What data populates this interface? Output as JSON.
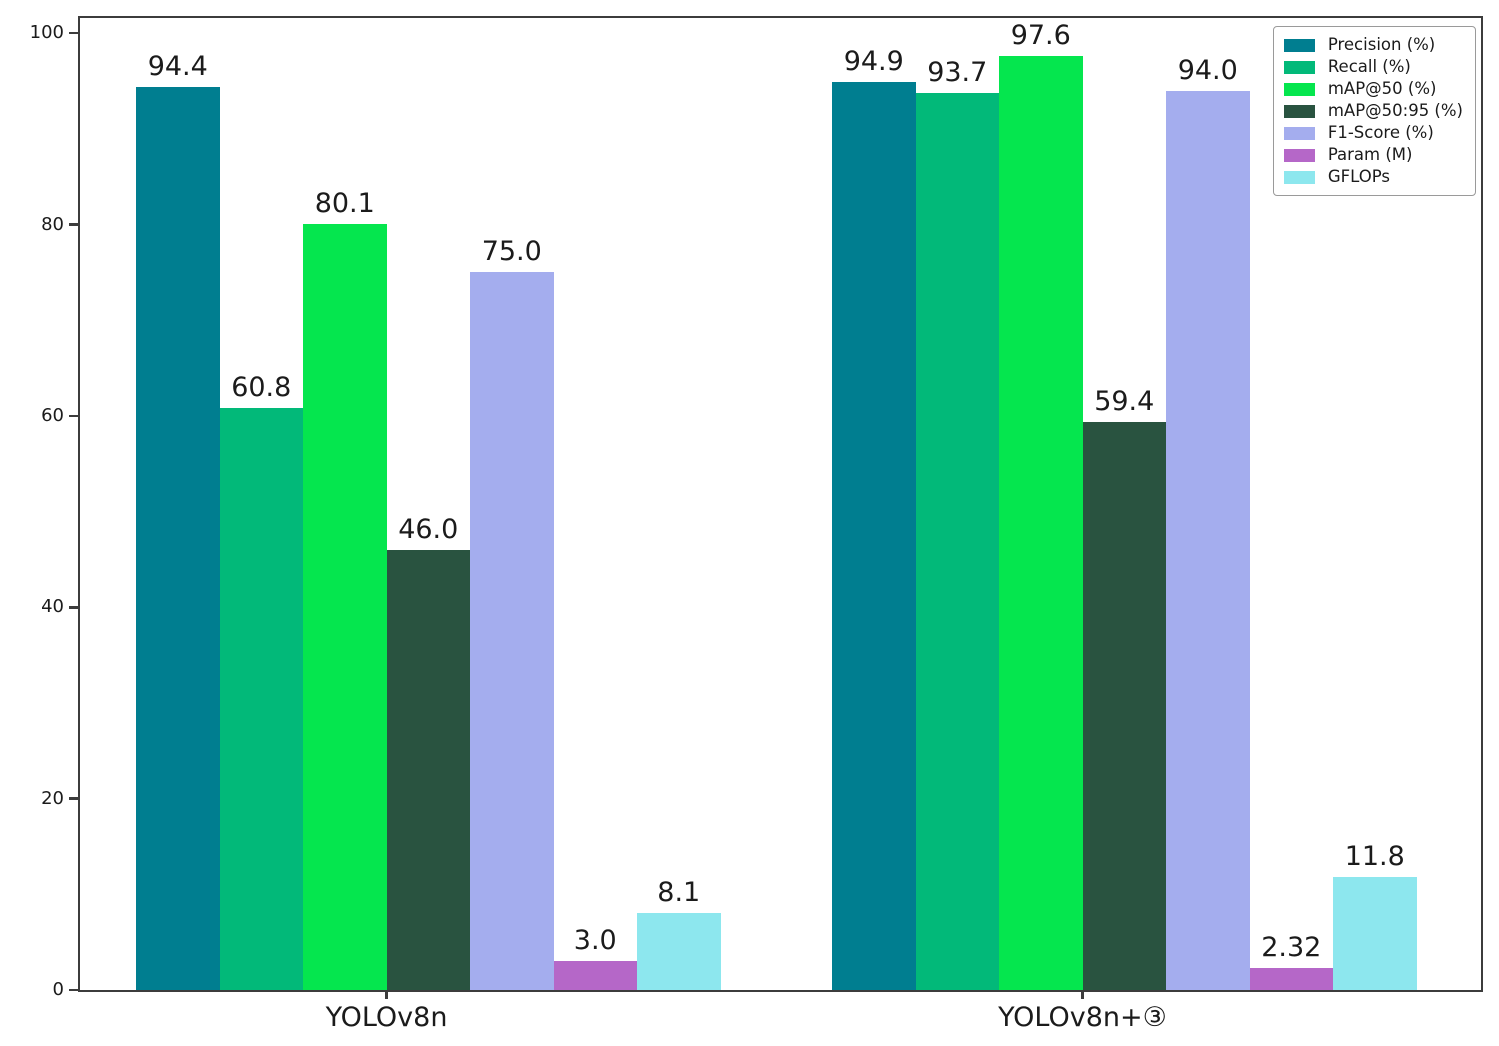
{
  "figure": {
    "background": "#ffffff",
    "axis_color": "#3c3c3c",
    "text_color": "#1b1b1b",
    "legend_border_color": "#9a9a9a"
  },
  "chart_data": {
    "type": "bar",
    "title": "",
    "xlabel": "",
    "ylabel": "",
    "categories": [
      "YOLOv8n",
      "YOLOv8n+③"
    ],
    "series": [
      {
        "name": "Precision (%)",
        "color": "#007e90",
        "values": [
          94.4,
          94.9
        ],
        "labels": [
          "94.4",
          "94.9"
        ]
      },
      {
        "name": "Recall (%)",
        "color": "#02b979",
        "values": [
          60.8,
          93.7
        ],
        "labels": [
          "60.8",
          "93.7"
        ]
      },
      {
        "name": "mAP@50 (%)",
        "color": "#05e64e",
        "values": [
          80.1,
          97.6
        ],
        "labels": [
          "80.1",
          "97.6"
        ]
      },
      {
        "name": "mAP@50:95 (%)",
        "color": "#295340",
        "values": [
          46.0,
          59.4
        ],
        "labels": [
          "46.0",
          "59.4"
        ]
      },
      {
        "name": "F1-Score (%)",
        "color": "#a4adee",
        "values": [
          75.0,
          94.0
        ],
        "labels": [
          "75.0",
          "94.0"
        ]
      },
      {
        "name": "Param (M)",
        "color": "#b567c8",
        "values": [
          3.0,
          2.32
        ],
        "labels": [
          "3.0",
          "2.32"
        ]
      },
      {
        "name": "GFLOPs",
        "color": "#8de7ee",
        "values": [
          8.1,
          11.8
        ],
        "labels": [
          "8.1",
          "11.8"
        ]
      }
    ],
    "yticks": [
      0,
      20,
      40,
      60,
      80,
      100
    ],
    "ylim": [
      0,
      102
    ],
    "grid": false,
    "legend_position": "upper right",
    "legend_entries": [
      "Precision (%)",
      "Recall (%)",
      "mAP@50 (%)",
      "mAP@50:95 (%)",
      "F1-Score (%)",
      "Param (M)",
      "GFLOPs"
    ]
  }
}
